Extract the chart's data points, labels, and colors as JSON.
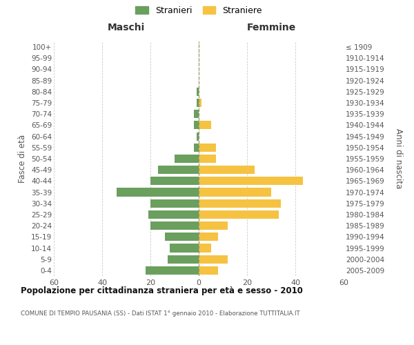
{
  "age_groups": [
    "0-4",
    "5-9",
    "10-14",
    "15-19",
    "20-24",
    "25-29",
    "30-34",
    "35-39",
    "40-44",
    "45-49",
    "50-54",
    "55-59",
    "60-64",
    "65-69",
    "70-74",
    "75-79",
    "80-84",
    "85-89",
    "90-94",
    "95-99",
    "100+"
  ],
  "birth_years": [
    "2005-2009",
    "2000-2004",
    "1995-1999",
    "1990-1994",
    "1985-1989",
    "1980-1984",
    "1975-1979",
    "1970-1974",
    "1965-1969",
    "1960-1964",
    "1955-1959",
    "1950-1954",
    "1945-1949",
    "1940-1944",
    "1935-1939",
    "1930-1934",
    "1925-1929",
    "1920-1924",
    "1915-1919",
    "1910-1914",
    "≤ 1909"
  ],
  "males": [
    22,
    13,
    12,
    14,
    20,
    21,
    20,
    34,
    20,
    17,
    10,
    2,
    1,
    2,
    2,
    1,
    1,
    0,
    0,
    0,
    0
  ],
  "females": [
    8,
    12,
    5,
    8,
    12,
    33,
    34,
    30,
    43,
    23,
    7,
    7,
    0,
    5,
    0,
    1,
    0,
    0,
    0,
    0,
    0
  ],
  "male_color": "#6a9f5e",
  "female_color": "#f5c242",
  "title": "Popolazione per cittadinanza straniera per età e sesso - 2010",
  "subtitle": "COMUNE DI TEMPIO PAUSANIA (SS) - Dati ISTAT 1° gennaio 2010 - Elaborazione TUTTITALIA.IT",
  "xlabel_left": "Maschi",
  "xlabel_right": "Femmine",
  "ylabel_left": "Fasce di età",
  "ylabel_right": "Anni di nascita",
  "legend_male": "Stranieri",
  "legend_female": "Straniere",
  "xlim": 60,
  "background_color": "#ffffff",
  "grid_color": "#cccccc"
}
